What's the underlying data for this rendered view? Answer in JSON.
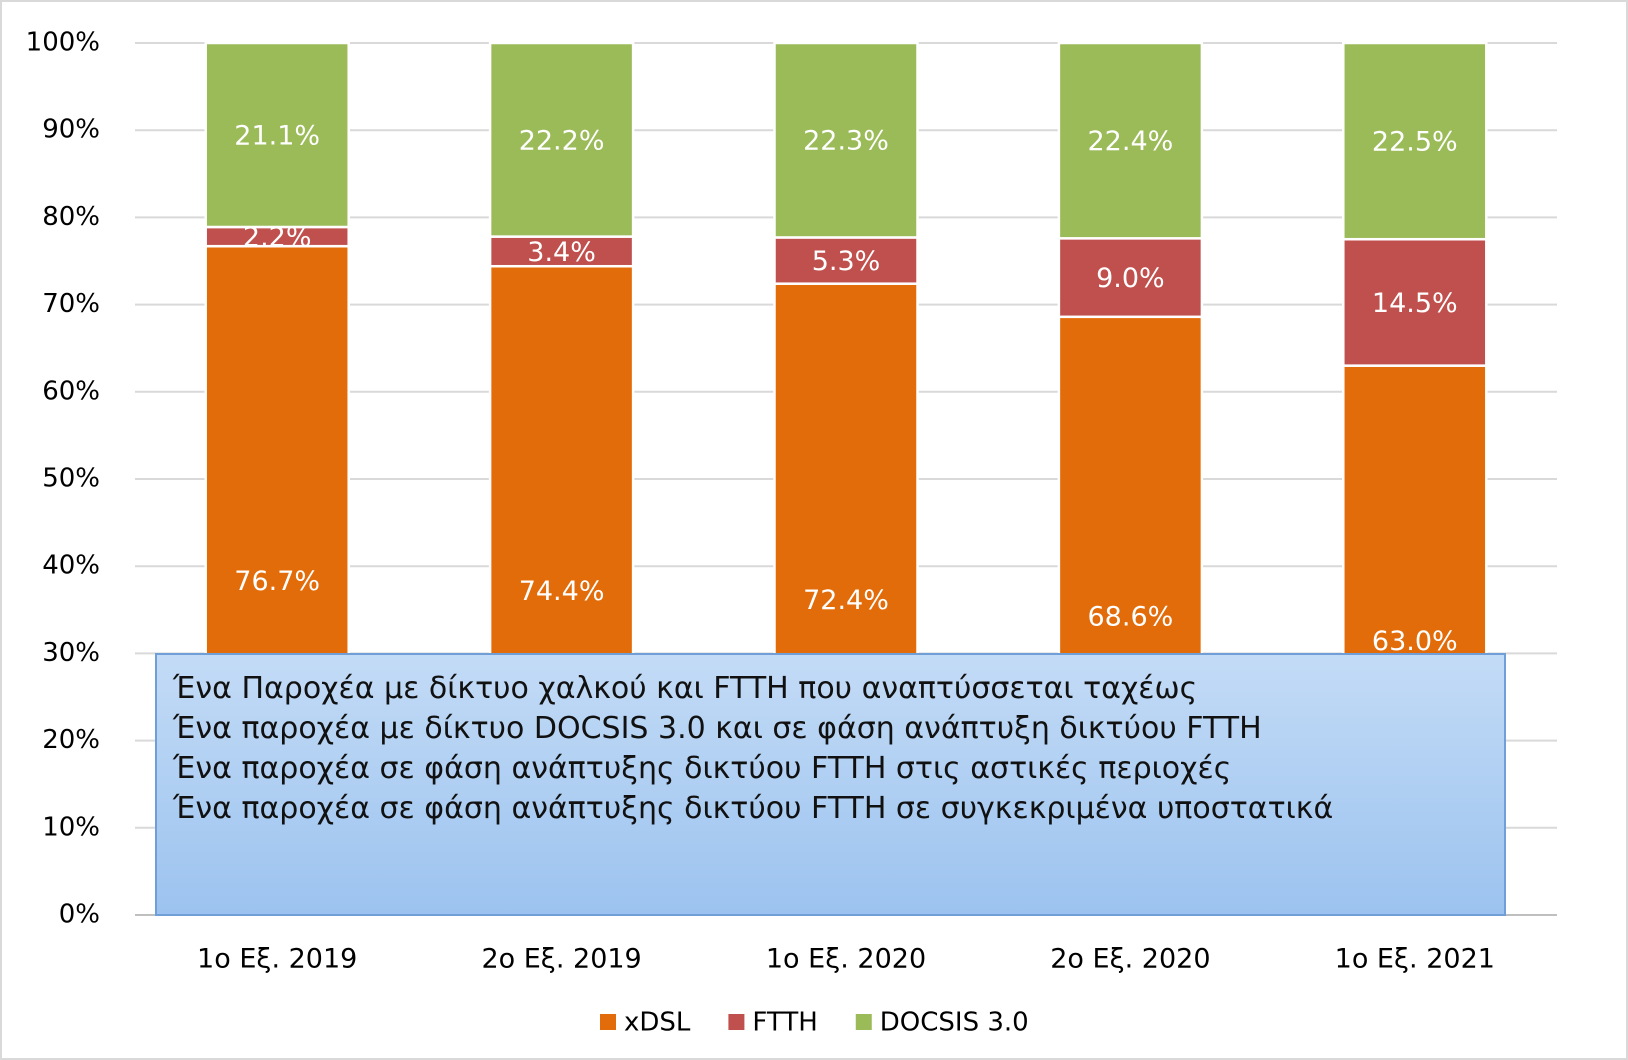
{
  "chart_data": {
    "type": "stacked_bar",
    "categories": [
      "1ο Εξ. 2019",
      "2ο Εξ. 2019",
      "1ο Εξ. 2020",
      "2ο Εξ. 2020",
      "1ο Εξ. 2021"
    ],
    "series": [
      {
        "name": "xDSL",
        "color": "#e36c0a",
        "values": [
          76.7,
          74.4,
          72.4,
          68.6,
          63.0
        ],
        "value_labels": [
          "76.7%",
          "74.4%",
          "72.4%",
          "68.6%",
          "63.0%"
        ]
      },
      {
        "name": "FTTH",
        "color": "#c0504d",
        "values": [
          2.2,
          3.4,
          5.3,
          9.0,
          14.5
        ],
        "value_labels": [
          "2.2%",
          "3.4%",
          "5.3%",
          "9.0%",
          "14.5%"
        ]
      },
      {
        "name": "DOCSIS 3.0",
        "color": "#9bbb59",
        "values": [
          21.1,
          22.2,
          22.3,
          22.4,
          22.5
        ],
        "value_labels": [
          "21.1%",
          "22.2%",
          "22.3%",
          "22.4%",
          "22.5%"
        ]
      }
    ],
    "ylim": [
      0,
      100
    ],
    "yticks": [
      {
        "value": 0,
        "label": "0%"
      },
      {
        "value": 10,
        "label": "10%"
      },
      {
        "value": 20,
        "label": "20%"
      },
      {
        "value": 30,
        "label": "30%"
      },
      {
        "value": 40,
        "label": "40%"
      },
      {
        "value": 50,
        "label": "50%"
      },
      {
        "value": 60,
        "label": "60%"
      },
      {
        "value": 70,
        "label": "70%"
      },
      {
        "value": 80,
        "label": "80%"
      },
      {
        "value": 90,
        "label": "90%"
      },
      {
        "value": 100,
        "label": "100%"
      }
    ],
    "grid": true,
    "legend": "bottom",
    "annotation": [
      "Ένα Παροχέα με δίκτυο χαλκού και FTTH που αναπτύσσεται ταχέως",
      "Ένα παροχέα με δίκτυο DOCSIS 3.0 και σε φάση ανάπτυξη δικτύου FTTH",
      "Ένα παροχέα σε φάση ανάπτυξης δικτύου FTTH στις αστικές περιοχές",
      "Ένα παροχέα σε φάση ανάπτυξης δικτύου FTTH σε συγκεκριμένα υποστατικά"
    ]
  }
}
